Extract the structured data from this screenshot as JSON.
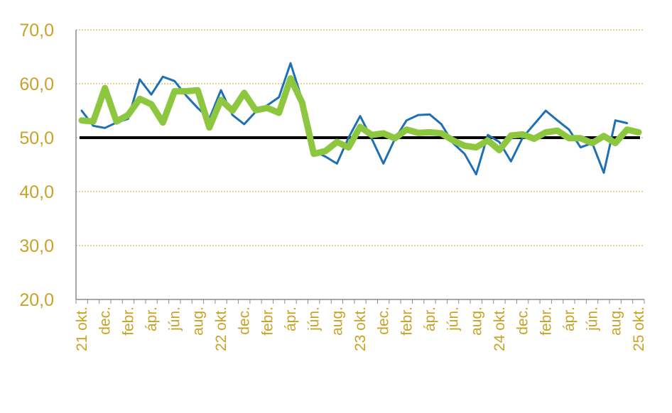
{
  "chart_data": {
    "type": "line",
    "title": "",
    "xlabel": "",
    "ylabel": "",
    "ylim": [
      20,
      70
    ],
    "y_ticks": [
      "20,0",
      "30,0",
      "40,0",
      "50,0",
      "60,0",
      "70,0"
    ],
    "grid": "horizontal dotted",
    "x_tick_labels": [
      "21 okt.",
      "dec.",
      "febr.",
      "ápr.",
      "jún.",
      "aug.",
      "22 okt.",
      "dec.",
      "febr.",
      "ápr.",
      "jún.",
      "aug.",
      "23 okt.",
      "dec.",
      "febr.",
      "ápr.",
      "jún.",
      "aug.",
      "24 okt.",
      "dec.",
      "febr.",
      "ápr.",
      "jún.",
      "aug.",
      "25 okt."
    ],
    "reference_line": 50,
    "series": [
      {
        "color": "#1f6fb5",
        "values": [
          55.0,
          52.2,
          51.8,
          52.8,
          53.5,
          60.8,
          58.0,
          61.3,
          60.5,
          57.8,
          55.5,
          53.5,
          58.8,
          54.2,
          52.5,
          54.8,
          56.0,
          57.5,
          63.8,
          57.0,
          47.5,
          46.5,
          45.2,
          50.0,
          54.0,
          49.8,
          45.2,
          49.8,
          53.2,
          54.2,
          54.3,
          52.5,
          49.0,
          47.0,
          43.2,
          50.5,
          49.2,
          45.6,
          50.0,
          52.5,
          55.0,
          53.2,
          51.5,
          48.2,
          49.0,
          43.5,
          53.2,
          52.7
        ]
      },
      {
        "color": "#8dc63f",
        "values": [
          53.2,
          53.0,
          59.2,
          53.0,
          54.2,
          57.2,
          56.2,
          52.8,
          58.6,
          58.6,
          58.8,
          51.9,
          57.0,
          55.0,
          58.3,
          55.1,
          55.5,
          54.6,
          61.0,
          56.5,
          47.0,
          47.5,
          49.2,
          48.2,
          52.0,
          50.5,
          50.8,
          49.9,
          51.5,
          50.9,
          51.0,
          50.8,
          49.5,
          48.5,
          48.2,
          49.5,
          47.7,
          50.4,
          50.6,
          49.8,
          51.0,
          51.3,
          49.9,
          49.9,
          49.0,
          50.3,
          49.0,
          51.5,
          51.0
        ]
      }
    ]
  }
}
